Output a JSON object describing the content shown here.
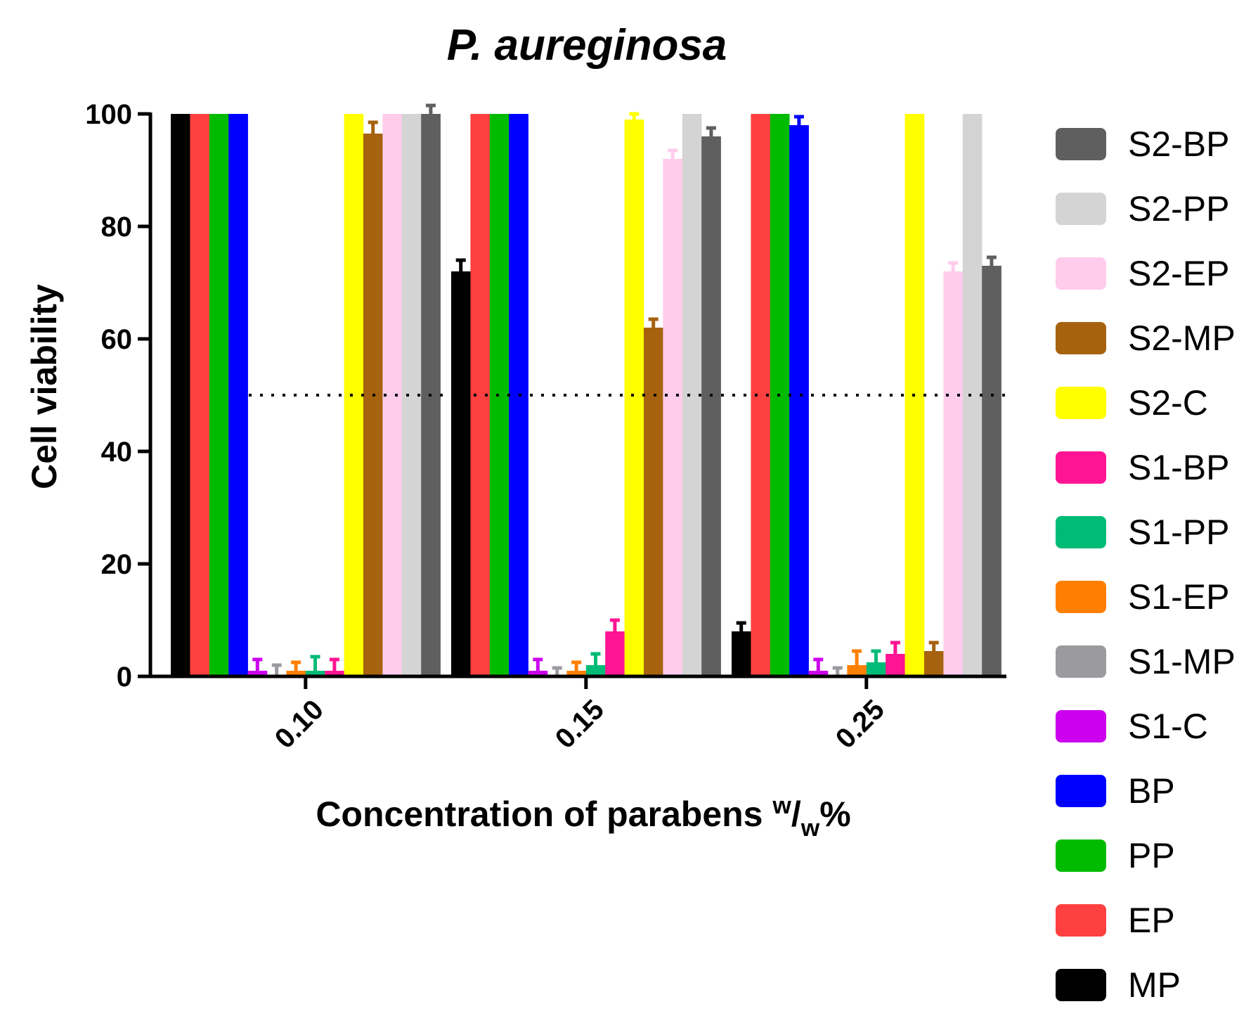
{
  "chart_data": {
    "type": "bar",
    "title": "P. aureginosa",
    "xlabel": {
      "main": "Concentration of parabens ",
      "sup": "w",
      "slash": "/",
      "sub": "w",
      "suffix": "%"
    },
    "ylabel": "Cell viability",
    "ylim": [
      0,
      100
    ],
    "yticks": [
      "0",
      "20",
      "40",
      "60",
      "80",
      "100"
    ],
    "categories": [
      "0.10",
      "0.15",
      "0.25"
    ],
    "reference_line": 50,
    "grid": false,
    "legend_position": "right",
    "series": [
      {
        "name": "MP",
        "color": "#000000",
        "values": [
          100,
          72,
          8
        ]
      },
      {
        "name": "EP",
        "color": "#ff4040",
        "values": [
          100,
          100,
          100
        ]
      },
      {
        "name": "PP",
        "color": "#00bb00",
        "values": [
          100,
          100,
          100
        ]
      },
      {
        "name": "BP",
        "color": "#0000ff",
        "values": [
          100,
          100,
          98
        ]
      },
      {
        "name": "S1-C",
        "color": "#cc00ee",
        "values": [
          1,
          1,
          1
        ]
      },
      {
        "name": "S1-MP",
        "color": "#9b9b9f",
        "values": [
          0,
          0,
          0
        ]
      },
      {
        "name": "S1-EP",
        "color": "#ff7f00",
        "values": [
          1,
          1,
          2
        ]
      },
      {
        "name": "S1-PP",
        "color": "#00bb77",
        "values": [
          1,
          2,
          2.5
        ]
      },
      {
        "name": "S1-BP",
        "color": "#ff1493",
        "values": [
          1,
          8,
          4
        ]
      },
      {
        "name": "S2-C",
        "color": "#ffff00",
        "values": [
          100,
          99,
          100
        ]
      },
      {
        "name": "S2-MP",
        "color": "#a6620f",
        "values": [
          96.5,
          62,
          4.5
        ]
      },
      {
        "name": "S2-EP",
        "color": "#ffccec",
        "values": [
          100,
          92,
          72
        ]
      },
      {
        "name": "S2-PP",
        "color": "#d4d4d4",
        "values": [
          100,
          100,
          100
        ]
      },
      {
        "name": "S2-BP",
        "color": "#5f5f5f",
        "values": [
          100,
          96,
          73
        ]
      }
    ],
    "errors": [
      [
        0,
        2,
        1.5
      ],
      [
        0,
        0,
        0
      ],
      [
        0,
        0,
        0
      ],
      [
        0,
        0,
        1.5
      ],
      [
        2,
        2,
        2
      ],
      [
        2,
        1.5,
        1.5
      ],
      [
        1.5,
        1.5,
        2.5
      ],
      [
        2.5,
        2,
        2
      ],
      [
        2,
        2,
        2
      ],
      [
        0,
        1,
        0
      ],
      [
        2,
        1.5,
        1.5
      ],
      [
        0,
        1.5,
        1.5
      ],
      [
        0,
        0,
        0
      ],
      [
        1.5,
        1.5,
        1.5
      ]
    ],
    "legend_order": [
      "S2-BP",
      "S2-PP",
      "S2-EP",
      "S2-MP",
      "S2-C",
      "S1-BP",
      "S1-PP",
      "S1-EP",
      "S1-MP",
      "S1-C",
      "BP",
      "PP",
      "EP",
      "MP"
    ]
  }
}
